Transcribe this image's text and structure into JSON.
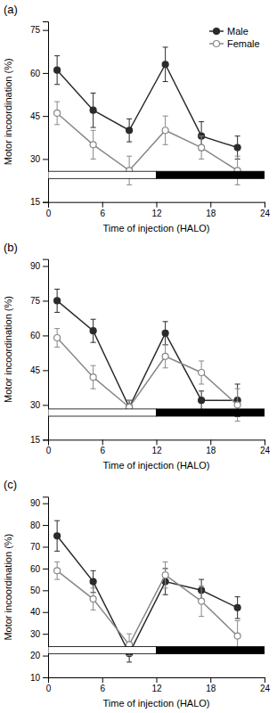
{
  "chart_data": [
    {
      "type": "line",
      "title": "(a)",
      "xlabel": "Time of injection (HALO)",
      "ylabel": "Motor incoordination (%)",
      "x": [
        1,
        5,
        9,
        13,
        17,
        21
      ],
      "series": [
        {
          "name": "Male",
          "color": "#2b2b2b",
          "marker": "circle",
          "values": [
            61,
            47,
            40,
            63,
            38,
            34
          ],
          "errors": [
            5,
            6,
            4,
            6,
            5,
            4
          ]
        },
        {
          "name": "Female",
          "color": "#888888",
          "marker": "open-circle",
          "values": [
            46,
            35,
            26,
            40,
            34,
            26
          ],
          "errors": [
            4,
            5,
            5,
            5,
            4,
            5
          ]
        }
      ],
      "day_night": [
        {
          "start": 0,
          "end": 12,
          "color": "#ffffff"
        },
        {
          "start": 12,
          "end": 24,
          "color": "#000000"
        }
      ],
      "xlim": [
        0,
        24
      ],
      "xticks": [
        0,
        6,
        12,
        18,
        24
      ],
      "ylim": [
        15,
        78
      ],
      "yticks": [
        15,
        30,
        45,
        60,
        75
      ],
      "legend": "upper right"
    },
    {
      "type": "line",
      "title": "(b)",
      "xlabel": "Time of injection (HALO)",
      "ylabel": "Motor incoordination (%)",
      "x": [
        1,
        5,
        9,
        13,
        17,
        21
      ],
      "series": [
        {
          "name": "Male",
          "color": "#2b2b2b",
          "marker": "circle",
          "values": [
            75,
            62,
            29,
            61,
            32,
            32
          ],
          "errors": [
            5,
            5,
            3,
            5,
            4,
            7
          ]
        },
        {
          "name": "Female",
          "color": "#888888",
          "marker": "open-circle",
          "values": [
            59,
            42,
            29,
            51,
            44,
            30
          ],
          "errors": [
            4,
            5,
            3,
            5,
            5,
            7
          ]
        }
      ],
      "day_night": [
        {
          "start": 0,
          "end": 12,
          "color": "#ffffff"
        },
        {
          "start": 12,
          "end": 24,
          "color": "#000000"
        }
      ],
      "xlim": [
        0,
        24
      ],
      "xticks": [
        0,
        6,
        12,
        18,
        24
      ],
      "ylim": [
        15,
        93
      ],
      "yticks": [
        15,
        30,
        45,
        60,
        75,
        90
      ]
    },
    {
      "type": "line",
      "title": "(c)",
      "xlabel": "Time of injection (HALO)",
      "ylabel": "Motor incoordination (%)",
      "x": [
        1,
        5,
        9,
        13,
        17,
        21
      ],
      "series": [
        {
          "name": "Male",
          "color": "#2b2b2b",
          "marker": "circle",
          "values": [
            75,
            54,
            21,
            54,
            50,
            42
          ],
          "errors": [
            7,
            5,
            4,
            6,
            5,
            5
          ]
        },
        {
          "name": "Female",
          "color": "#888888",
          "marker": "open-circle",
          "values": [
            59,
            46,
            25,
            57,
            45,
            29
          ],
          "errors": [
            4,
            5,
            5,
            6,
            7,
            7
          ]
        }
      ],
      "day_night": [
        {
          "start": 0,
          "end": 12,
          "color": "#ffffff"
        },
        {
          "start": 12,
          "end": 24,
          "color": "#000000"
        }
      ],
      "xlim": [
        0,
        24
      ],
      "xticks": [
        0,
        6,
        12,
        18,
        24
      ],
      "ylim": [
        10,
        93
      ],
      "yticks": [
        10,
        20,
        30,
        40,
        50,
        60,
        70,
        80,
        90
      ]
    }
  ]
}
